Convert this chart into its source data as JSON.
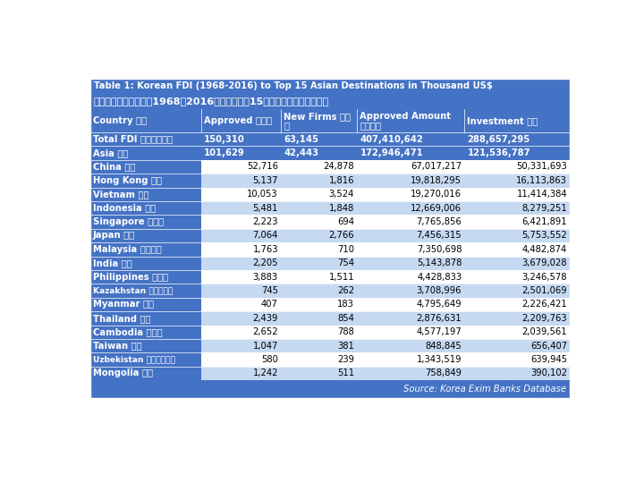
{
  "title_en": "Table 1: Korean FDI (1968-2016) to Top 15 Asian Destinations in Thousand US$",
  "title_cn": "表１：韓國對外投資（1968－2016）在亞洲的前15個目的地（以千美元計）",
  "col_headers_line1": [
    "Country 國家",
    "Approved 被認可",
    "New Firms 新公",
    "Approved Amount",
    "Investment 投資"
  ],
  "col_headers_line2": [
    "",
    "",
    "司",
    "核准金額",
    ""
  ],
  "rows": [
    {
      "country": "Total FDI 對外投資總額",
      "approved": "150,310",
      "new_firms": "63,145",
      "approved_amount": "407,410,642",
      "investment": "288,657,295",
      "type": "total"
    },
    {
      "country": "Asia 亞洲",
      "approved": "101,629",
      "new_firms": "42,443",
      "approved_amount": "172,946,471",
      "investment": "121,536,787",
      "type": "asia"
    },
    {
      "country": "China 中國",
      "approved": "52,716",
      "new_firms": "24,878",
      "approved_amount": "67,017,217",
      "investment": "50,331,693",
      "type": "country"
    },
    {
      "country": "Hong Kong 香港",
      "approved": "5,137",
      "new_firms": "1,816",
      "approved_amount": "19,818,295",
      "investment": "16,113,863",
      "type": "country"
    },
    {
      "country": "Vietnam 越南",
      "approved": "10,053",
      "new_firms": "3,524",
      "approved_amount": "19,270,016",
      "investment": "11,414,384",
      "type": "country"
    },
    {
      "country": "Indonesia 印尼",
      "approved": "5,481",
      "new_firms": "1,848",
      "approved_amount": "12,669,006",
      "investment": "8,279,251",
      "type": "country"
    },
    {
      "country": "Singapore 新加坡",
      "approved": "2,223",
      "new_firms": "694",
      "approved_amount": "7,765,856",
      "investment": "6,421,891",
      "type": "country"
    },
    {
      "country": "Japan 日本",
      "approved": "7,064",
      "new_firms": "2,766",
      "approved_amount": "7,456,315",
      "investment": "5,753,552",
      "type": "country"
    },
    {
      "country": "Malaysia 馬來西亞",
      "approved": "1,763",
      "new_firms": "710",
      "approved_amount": "7,350,698",
      "investment": "4,482,874",
      "type": "country"
    },
    {
      "country": "India 印度",
      "approved": "2,205",
      "new_firms": "754",
      "approved_amount": "5,143,878",
      "investment": "3,679,028",
      "type": "country"
    },
    {
      "country": "Philippines 菲律賓",
      "approved": "3,883",
      "new_firms": "1,511",
      "approved_amount": "4,428,833",
      "investment": "3,246,578",
      "type": "country"
    },
    {
      "country": "Kazakhstan 哈薩克斯坦",
      "approved": "745",
      "new_firms": "262",
      "approved_amount": "3,708,996",
      "investment": "2,501,069",
      "type": "country_small"
    },
    {
      "country": "Myanmar 緬甸",
      "approved": "407",
      "new_firms": "183",
      "approved_amount": "4,795,649",
      "investment": "2,226,421",
      "type": "country"
    },
    {
      "country": "Thailand 泰國",
      "approved": "2,439",
      "new_firms": "854",
      "approved_amount": "2,876,631",
      "investment": "2,209,763",
      "type": "country"
    },
    {
      "country": "Cambodia 柬埔寨",
      "approved": "2,652",
      "new_firms": "788",
      "approved_amount": "4,577,197",
      "investment": "2,039,561",
      "type": "country"
    },
    {
      "country": "Taiwan 台灣",
      "approved": "1,047",
      "new_firms": "381",
      "approved_amount": "848,845",
      "investment": "656,407",
      "type": "country"
    },
    {
      "country": "Uzbekistan 烏茲別克斯坦",
      "approved": "580",
      "new_firms": "239",
      "approved_amount": "1,343,519",
      "investment": "639,945",
      "type": "country_small"
    },
    {
      "country": "Mongolia 蒙古",
      "approved": "1,242",
      "new_firms": "511",
      "approved_amount": "758,849",
      "investment": "390,102",
      "type": "country"
    }
  ],
  "source": "Source: Korea Exim Banks Database",
  "blue": "#4472C4",
  "white": "#FFFFFF",
  "light_blue": "#C5D9F1",
  "very_light_blue": "#DCE6F1",
  "row_alt1": "#FFFFFF",
  "row_alt2": "#C5D9F1"
}
